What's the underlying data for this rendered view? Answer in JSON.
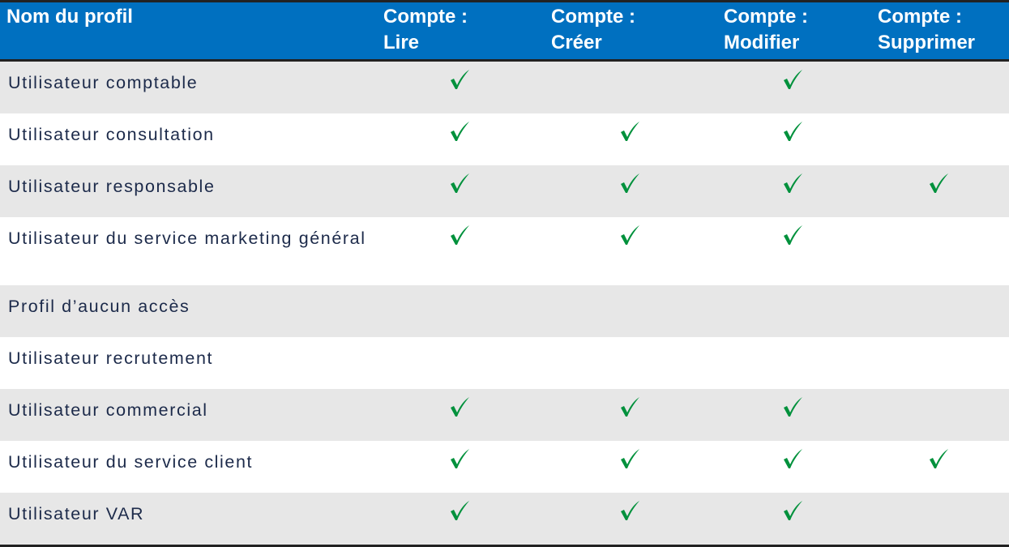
{
  "table": {
    "headers": [
      "Nom du profil",
      "Compte :\nLire",
      "Compte :\nCréer",
      "Compte :\nModifier",
      "Compte :\nSupprimer"
    ],
    "header_lines": [
      [
        "Nom du profil"
      ],
      [
        "Compte :",
        "Lire"
      ],
      [
        "Compte :",
        "Créer"
      ],
      [
        "Compte :",
        "Modifier"
      ],
      [
        "Compte :",
        "Supprimer"
      ]
    ],
    "rows": [
      {
        "name": "Utilisateur comptable",
        "perms": [
          true,
          false,
          true,
          false
        ]
      },
      {
        "name": "Utilisateur consultation",
        "perms": [
          true,
          true,
          true,
          false
        ]
      },
      {
        "name": "Utilisateur responsable",
        "perms": [
          true,
          true,
          true,
          true
        ]
      },
      {
        "name": "Utilisateur du service marketing général",
        "perms": [
          true,
          true,
          true,
          false
        ]
      },
      {
        "name": "Profil d’aucun accès",
        "perms": [
          false,
          false,
          false,
          false
        ]
      },
      {
        "name": "Utilisateur recrutement",
        "perms": [
          false,
          false,
          false,
          false
        ]
      },
      {
        "name": "Utilisateur commercial",
        "perms": [
          true,
          true,
          true,
          false
        ]
      },
      {
        "name": "Utilisateur du service client",
        "perms": [
          true,
          true,
          true,
          true
        ]
      },
      {
        "name": "Utilisateur VAR",
        "perms": [
          true,
          true,
          true,
          false
        ]
      }
    ],
    "check_icon": "checkmark-icon",
    "colors": {
      "header_bg": "#0070c0",
      "check": "#00913c",
      "stripe": "#e7e7e7",
      "text": "#1c2a4a"
    }
  }
}
